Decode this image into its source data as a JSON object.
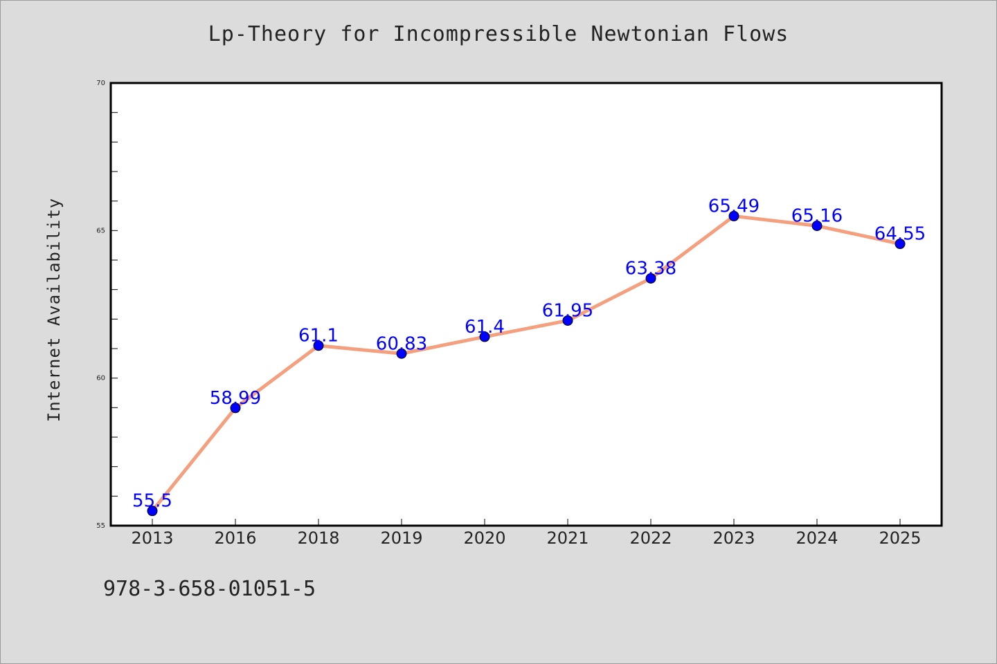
{
  "chart_data": {
    "type": "line",
    "title": "Lp-Theory for Incompressible Newtonian Flows",
    "ylabel": "Internet Availability",
    "xlabel": "",
    "categories": [
      "2013",
      "2016",
      "2018",
      "2019",
      "2020",
      "2021",
      "2022",
      "2023",
      "2024",
      "2025"
    ],
    "series": [
      {
        "values": [
          55.5,
          58.99,
          61.1,
          60.83,
          61.4,
          61.95,
          63.38,
          65.49,
          65.16,
          64.55
        ]
      }
    ],
    "data_labels": [
      "55.5",
      "58.99",
      "61.1",
      "60.83",
      "61.4",
      "61.95",
      "63.38",
      "65.49",
      "65.16",
      "64.55"
    ],
    "ylim": [
      55,
      70
    ],
    "yticks": [
      55,
      60,
      65,
      70
    ],
    "grid": false,
    "colors": {
      "line": "#f4a07f",
      "marker": "#0000ff",
      "label": "#0000ff",
      "plot_bg": "#ffffff",
      "page_bg": "#dcdcdc"
    }
  },
  "footer": {
    "code": "978-3-658-01051-5"
  }
}
